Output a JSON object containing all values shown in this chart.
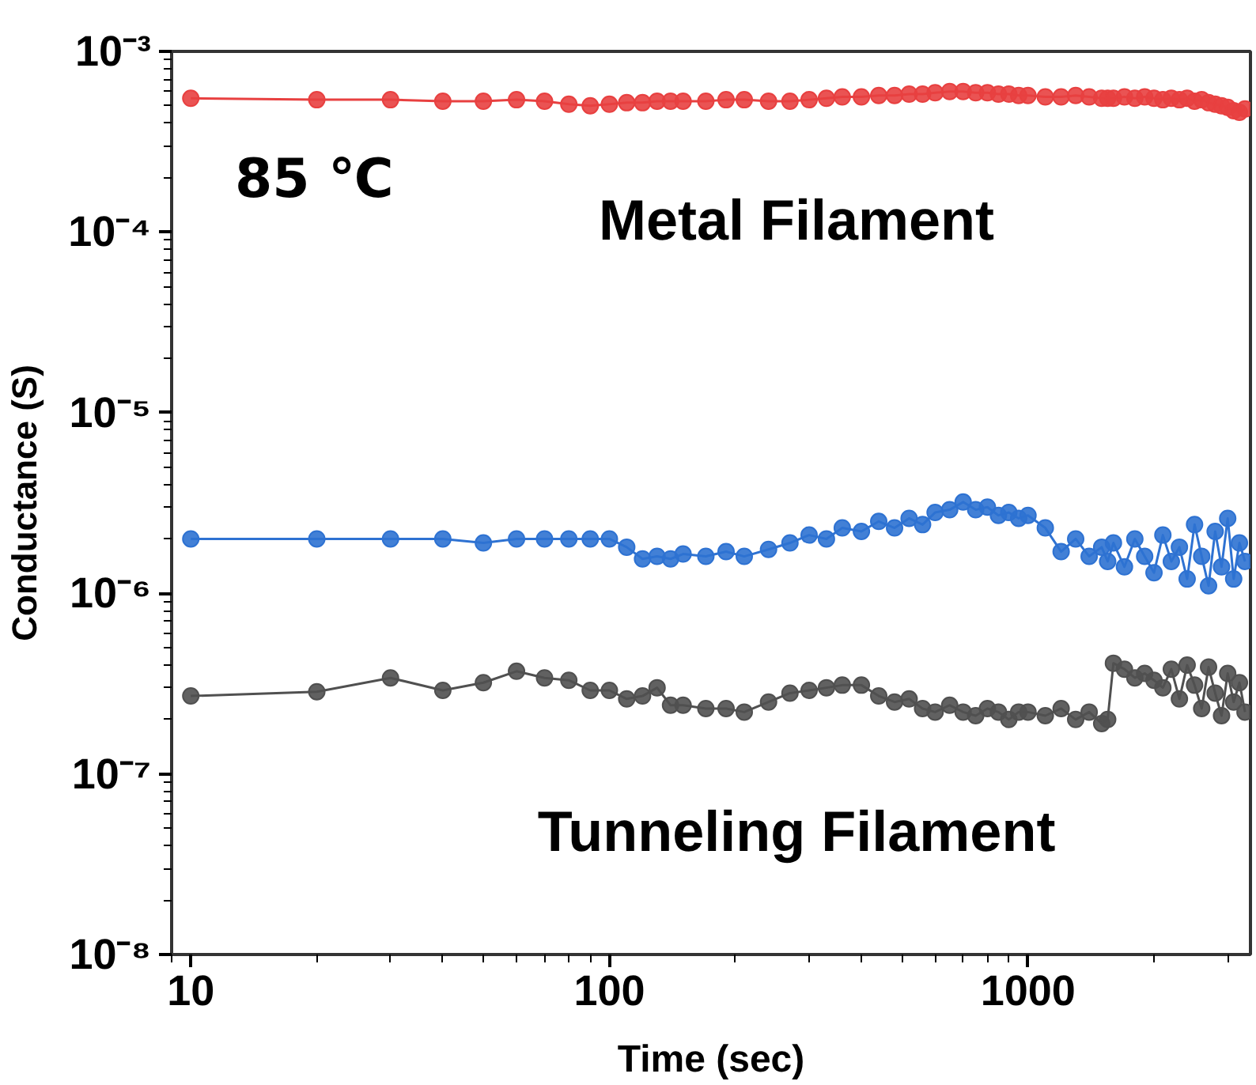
{
  "chart_data": {
    "type": "line",
    "xlabel": "Time (sec)",
    "ylabel": "Conductance (S)",
    "annotations": [
      "85 ℃"
    ],
    "log": "xy",
    "grid": false,
    "marker": "circle",
    "line_style": "solid",
    "xlim": [
      9,
      3400
    ],
    "ylim": [
      1e-08,
      0.001
    ],
    "xticks": [
      10,
      100,
      1000
    ],
    "yticks": [
      {
        "value": 1e-08,
        "label": "10⁻⁸"
      },
      {
        "value": 1e-07,
        "label": "10⁻⁷"
      },
      {
        "value": 1e-06,
        "label": "10⁻⁶"
      },
      {
        "value": 1e-05,
        "label": "10⁻⁵"
      },
      {
        "value": 0.0001,
        "label": "10⁻⁴"
      },
      {
        "value": 0.001,
        "label": "10⁻³"
      }
    ],
    "x": [
      10,
      20,
      30,
      40,
      50,
      60,
      70,
      80,
      90,
      100,
      110,
      120,
      130,
      140,
      150,
      170,
      190,
      210,
      240,
      270,
      300,
      330,
      360,
      400,
      440,
      480,
      520,
      560,
      600,
      650,
      700,
      750,
      800,
      850,
      900,
      950,
      1000,
      1100,
      1200,
      1300,
      1400,
      1500,
      1550,
      1600,
      1700,
      1800,
      1900,
      2000,
      2100,
      2200,
      2300,
      2400,
      2500,
      2600,
      2700,
      2800,
      2900,
      3000,
      3100,
      3200,
      3300
    ],
    "series": [
      {
        "name": "Metal Filament",
        "color": "#e84040",
        "values": [
          0.00055,
          0.00054,
          0.00054,
          0.00053,
          0.00053,
          0.00054,
          0.00053,
          0.00051,
          0.0005,
          0.00051,
          0.00052,
          0.00052,
          0.00053,
          0.00053,
          0.00053,
          0.00053,
          0.00054,
          0.00054,
          0.00053,
          0.00053,
          0.00054,
          0.00055,
          0.00056,
          0.00056,
          0.00057,
          0.00057,
          0.00058,
          0.00058,
          0.00059,
          0.0006,
          0.0006,
          0.00059,
          0.00059,
          0.00058,
          0.00058,
          0.00057,
          0.00057,
          0.00056,
          0.00056,
          0.00057,
          0.00056,
          0.00055,
          0.00055,
          0.00055,
          0.00056,
          0.00055,
          0.00056,
          0.00055,
          0.00054,
          0.00055,
          0.00054,
          0.00055,
          0.00053,
          0.00054,
          0.00052,
          0.00051,
          0.0005,
          0.00049,
          0.00047,
          0.00046,
          0.00048
        ]
      },
      {
        "color": "#2e72d2",
        "values": [
          2e-06,
          2e-06,
          2e-06,
          2e-06,
          1.9e-06,
          2e-06,
          2e-06,
          2e-06,
          2e-06,
          2e-06,
          1.8e-06,
          1.55e-06,
          1.6e-06,
          1.55e-06,
          1.65e-06,
          1.6e-06,
          1.7e-06,
          1.6e-06,
          1.75e-06,
          1.9e-06,
          2.1e-06,
          2e-06,
          2.3e-06,
          2.2e-06,
          2.5e-06,
          2.3e-06,
          2.6e-06,
          2.4e-06,
          2.8e-06,
          2.9e-06,
          3.2e-06,
          2.9e-06,
          3e-06,
          2.7e-06,
          2.8e-06,
          2.6e-06,
          2.7e-06,
          2.3e-06,
          1.7e-06,
          2e-06,
          1.6e-06,
          1.8e-06,
          1.5e-06,
          1.9e-06,
          1.4e-06,
          2e-06,
          1.6e-06,
          1.3e-06,
          2.1e-06,
          1.5e-06,
          1.8e-06,
          1.2e-06,
          2.4e-06,
          1.6e-06,
          1.1e-06,
          2.2e-06,
          1.4e-06,
          2.6e-06,
          1.2e-06,
          1.9e-06,
          1.5e-06
        ]
      },
      {
        "name": "Tunneling Filament",
        "color": "#505050",
        "values": [
          2.7e-07,
          2.85e-07,
          3.4e-07,
          2.9e-07,
          3.2e-07,
          3.7e-07,
          3.4e-07,
          3.3e-07,
          2.9e-07,
          2.9e-07,
          2.6e-07,
          2.7e-07,
          3e-07,
          2.4e-07,
          2.4e-07,
          2.3e-07,
          2.3e-07,
          2.2e-07,
          2.5e-07,
          2.8e-07,
          2.9e-07,
          3e-07,
          3.1e-07,
          3.1e-07,
          2.7e-07,
          2.5e-07,
          2.6e-07,
          2.3e-07,
          2.2e-07,
          2.4e-07,
          2.2e-07,
          2.1e-07,
          2.3e-07,
          2.2e-07,
          2e-07,
          2.2e-07,
          2.2e-07,
          2.1e-07,
          2.3e-07,
          2e-07,
          2.2e-07,
          1.9e-07,
          2e-07,
          4.1e-07,
          3.8e-07,
          3.4e-07,
          3.6e-07,
          3.3e-07,
          3e-07,
          3.8e-07,
          2.6e-07,
          4e-07,
          3.1e-07,
          2.3e-07,
          3.9e-07,
          2.8e-07,
          2.1e-07,
          3.6e-07,
          2.5e-07,
          3.2e-07,
          2.2e-07
        ]
      }
    ]
  }
}
